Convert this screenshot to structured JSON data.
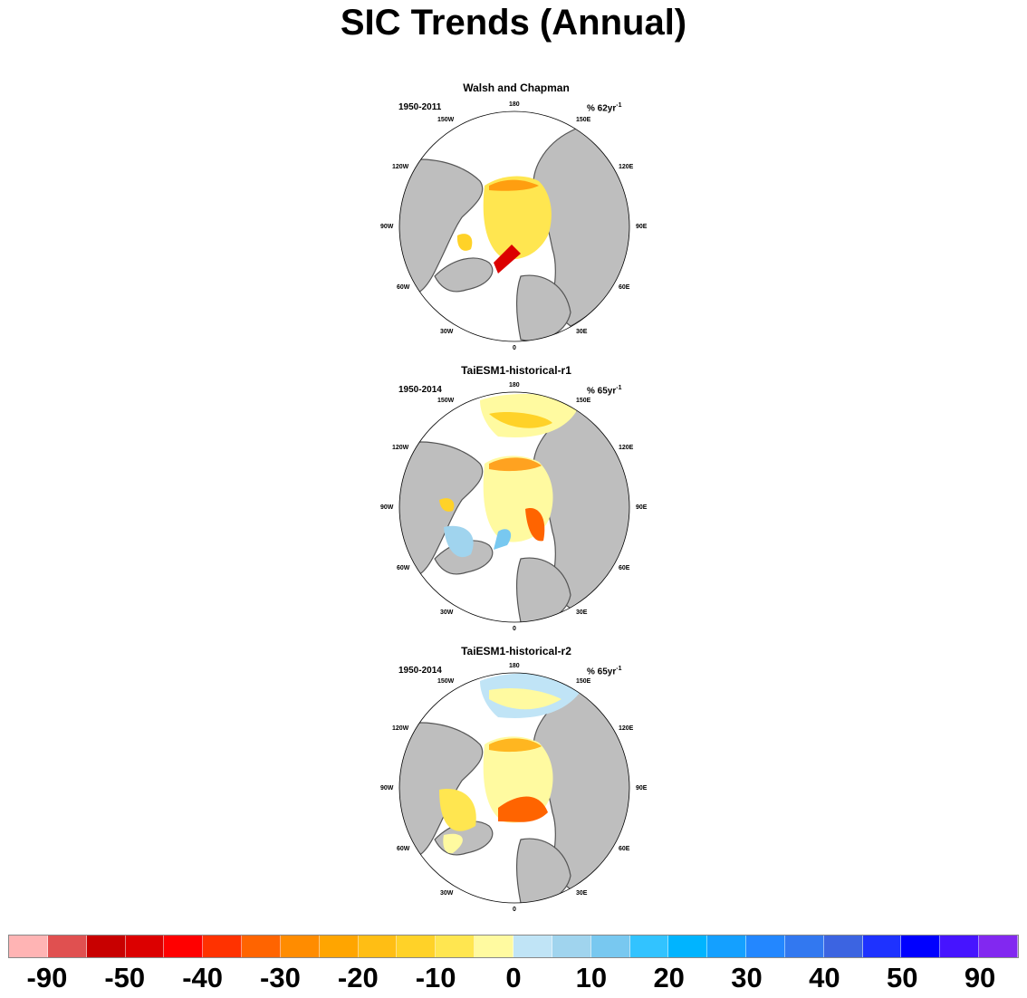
{
  "title": "SIC Trends (Annual)",
  "panels": [
    {
      "title": "Walsh and Chapman",
      "period": "1950-2011",
      "units_main": "% 62yr",
      "units_sup": "-1"
    },
    {
      "title": "TaiESM1-historical-r1",
      "period": "1950-2014",
      "units_main": "% 65yr",
      "units_sup": "-1"
    },
    {
      "title": "TaiESM1-historical-r2",
      "period": "1950-2014",
      "units_main": "% 65yr",
      "units_sup": "-1"
    }
  ],
  "lon_labels": {
    "l180": "180",
    "l150e": "150E",
    "l120e": "120E",
    "l90e": "90E",
    "l60e": "60E",
    "l30e": "30E",
    "l0": "0",
    "l30w": "30W",
    "l60w": "60W",
    "l90w": "90W",
    "l120w": "120W",
    "l150w": "150W"
  },
  "colorbar": {
    "colors": [
      "#ffb4b4",
      "#e05050",
      "#c80000",
      "#dc0000",
      "#ff0000",
      "#ff3200",
      "#ff6400",
      "#ff8c00",
      "#ffa500",
      "#ffbe14",
      "#ffd228",
      "#ffe650",
      "#fffaa0",
      "#c0e4f6",
      "#a0d4ee",
      "#78c8f0",
      "#32c3ff",
      "#00b4ff",
      "#14a0ff",
      "#2387ff",
      "#3278f0",
      "#3c64e1",
      "#1e32ff",
      "#0000ff",
      "#4614ff",
      "#8228f0"
    ],
    "tick_labels": [
      "-90",
      "-50",
      "-40",
      "-30",
      "-20",
      "-10",
      "0",
      "10",
      "20",
      "30",
      "40",
      "50",
      "90"
    ]
  }
}
